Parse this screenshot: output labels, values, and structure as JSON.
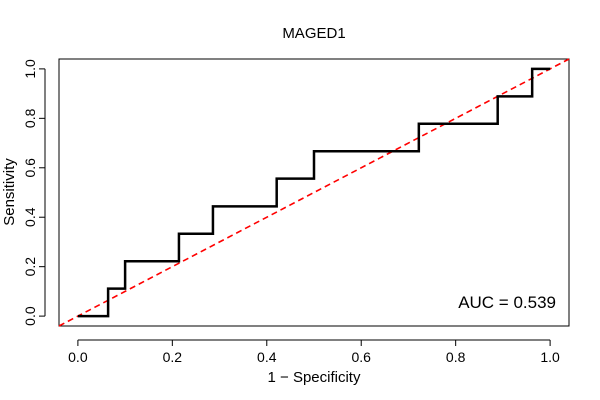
{
  "chart_data": {
    "type": "line",
    "title": "MAGED1",
    "xlabel": "1 − Specificity",
    "ylabel": "Sensitivity",
    "xlim": [
      -0.04,
      1.04
    ],
    "ylim": [
      -0.04,
      1.04
    ],
    "x_ticks": [
      "0.0",
      "0.2",
      "0.4",
      "0.6",
      "0.8",
      "1.0"
    ],
    "y_ticks": [
      "0.0",
      "0.2",
      "0.4",
      "0.6",
      "0.8",
      "1.0"
    ],
    "grid": false,
    "series": [
      {
        "style": "step",
        "color": "#000000",
        "points": [
          [
            0.0,
            0.0
          ],
          [
            0.064,
            0.0
          ],
          [
            0.064,
            0.111
          ],
          [
            0.1,
            0.111
          ],
          [
            0.1,
            0.222
          ],
          [
            0.214,
            0.222
          ],
          [
            0.214,
            0.333
          ],
          [
            0.286,
            0.333
          ],
          [
            0.286,
            0.444
          ],
          [
            0.421,
            0.444
          ],
          [
            0.421,
            0.556
          ],
          [
            0.5,
            0.556
          ],
          [
            0.5,
            0.667
          ],
          [
            0.722,
            0.667
          ],
          [
            0.722,
            0.778
          ],
          [
            0.889,
            0.778
          ],
          [
            0.889,
            0.889
          ],
          [
            0.962,
            0.889
          ],
          [
            0.962,
            1.0
          ],
          [
            1.0,
            1.0
          ]
        ]
      }
    ],
    "reference_line": {
      "from": [
        -0.04,
        -0.04
      ],
      "to": [
        1.04,
        1.04
      ],
      "color": "#ff0000",
      "dash": true
    },
    "annotation": "AUC = 0.539"
  }
}
